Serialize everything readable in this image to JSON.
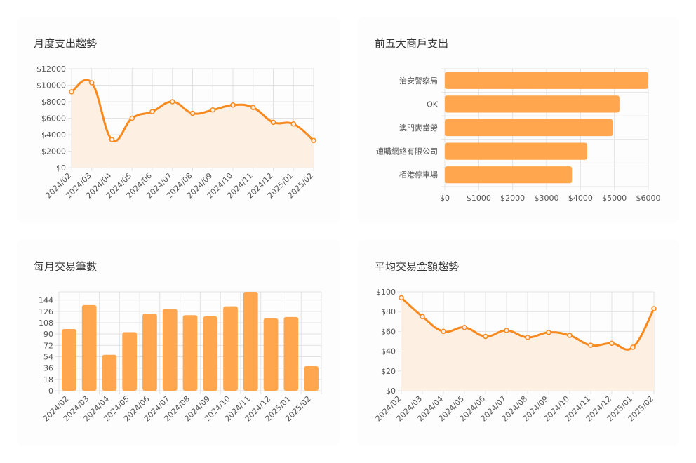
{
  "colors": {
    "accent": "#f7891f",
    "bar": "#ffa64f",
    "area": "#fdf0e3",
    "grid": "#e2e2e2",
    "text": "#555555"
  },
  "chart_data": [
    {
      "id": "monthly",
      "type": "line",
      "title": "月度支出趨勢",
      "categories": [
        "2024/02",
        "2024/03",
        "2024/04",
        "2024/05",
        "2024/06",
        "2024/07",
        "2024/08",
        "2024/09",
        "2024/10",
        "2024/11",
        "2024/12",
        "2025/01",
        "2025/02"
      ],
      "values": [
        9200,
        10300,
        3400,
        6000,
        6800,
        8000,
        6600,
        7000,
        7600,
        7300,
        5500,
        5300,
        3300
      ],
      "yticks": [
        0,
        2000,
        4000,
        6000,
        8000,
        10000,
        12000
      ],
      "ytick_labels": [
        "$0",
        "$2000",
        "$4000",
        "$6000",
        "$8000",
        "$10000",
        "$12000"
      ],
      "ylim": [
        0,
        12000
      ],
      "fill": true,
      "grid": true
    },
    {
      "id": "merchants",
      "type": "bar",
      "orientation": "horizontal",
      "title": "前五大商戶支出",
      "categories": [
        "治安警察局",
        "OK",
        "澳門麥當勞",
        "速購網絡有限公司",
        "栢港停車場"
      ],
      "values": [
        6000,
        5150,
        4950,
        4200,
        3750
      ],
      "xticks": [
        0,
        1000,
        2000,
        3000,
        4000,
        5000,
        6000
      ],
      "xtick_labels": [
        "$0",
        "$1000",
        "$2000",
        "$3000",
        "$4000",
        "$5000",
        "$6000"
      ],
      "xlim": [
        0,
        6000
      ],
      "grid": true
    },
    {
      "id": "counts",
      "type": "bar",
      "title": "每月交易筆數",
      "categories": [
        "2024/02",
        "2024/03",
        "2024/04",
        "2024/05",
        "2024/06",
        "2024/07",
        "2024/08",
        "2024/09",
        "2024/10",
        "2024/11",
        "2024/12",
        "2025/01",
        "2025/02"
      ],
      "values": [
        98,
        136,
        57,
        93,
        122,
        130,
        120,
        118,
        134,
        157,
        115,
        117,
        39
      ],
      "yticks": [
        0,
        18,
        36,
        54,
        72,
        90,
        108,
        126,
        144
      ],
      "ytick_labels": [
        "0",
        "18",
        "36",
        "54",
        "72",
        "90",
        "108",
        "126",
        "144"
      ],
      "ylim": [
        0,
        157
      ],
      "grid": true
    },
    {
      "id": "average",
      "type": "line",
      "title": "平均交易金額趨勢",
      "categories": [
        "2024/02",
        "2024/03",
        "2024/04",
        "2024/05",
        "2024/06",
        "2024/07",
        "2024/08",
        "2024/09",
        "2024/10",
        "2024/11",
        "2024/12",
        "2025/01",
        "2025/02"
      ],
      "values": [
        94,
        75,
        60,
        64,
        55,
        61,
        54,
        59,
        56,
        46,
        48,
        44,
        83
      ],
      "yticks": [
        0,
        20,
        40,
        60,
        80,
        100
      ],
      "ytick_labels": [
        "$0",
        "$20",
        "$40",
        "$60",
        "$80",
        "$100"
      ],
      "ylim": [
        0,
        100
      ],
      "fill": true,
      "grid": true
    }
  ]
}
